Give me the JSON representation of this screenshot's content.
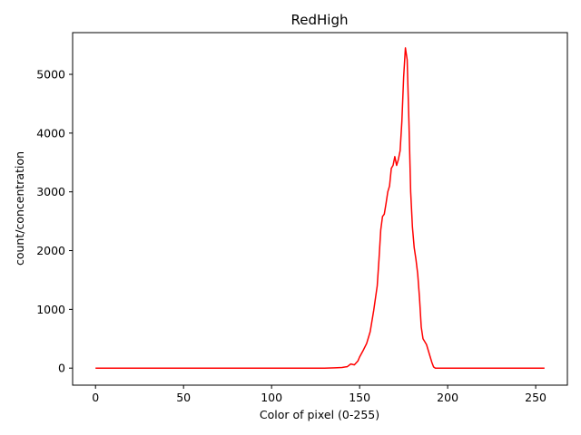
{
  "chart_data": {
    "type": "line",
    "title": "RedHigh",
    "xlabel": "Color of pixel (0-255)",
    "ylabel": "count/concentration",
    "xlim": [
      -13,
      268
    ],
    "ylim": [
      -290,
      5710
    ],
    "xticks": [
      0,
      50,
      100,
      150,
      200,
      250
    ],
    "yticks": [
      0,
      1000,
      2000,
      3000,
      4000,
      5000
    ],
    "grid": false,
    "series": [
      {
        "color": "#ff0000",
        "x": [
          0,
          130,
          136,
          140,
          143,
          145,
          147,
          149,
          150,
          152,
          154,
          156,
          158,
          160,
          161,
          162,
          163,
          164,
          165,
          166,
          167,
          168,
          169,
          170,
          171,
          172,
          173,
          174,
          175,
          176,
          177,
          178,
          179,
          180,
          181,
          182,
          183,
          184,
          185,
          186,
          187,
          188,
          189,
          190,
          191,
          192,
          193,
          194,
          195,
          196,
          197,
          198,
          200,
          255
        ],
        "y": [
          0,
          0,
          5,
          10,
          25,
          70,
          55,
          120,
          190,
          300,
          420,
          620,
          980,
          1400,
          1850,
          2350,
          2580,
          2620,
          2800,
          3000,
          3100,
          3400,
          3450,
          3600,
          3450,
          3550,
          3700,
          4200,
          4950,
          5450,
          5250,
          4200,
          3000,
          2400,
          2050,
          1850,
          1600,
          1200,
          700,
          500,
          450,
          400,
          300,
          200,
          100,
          20,
          0,
          0,
          0,
          0,
          0,
          0,
          0,
          0
        ]
      }
    ]
  }
}
